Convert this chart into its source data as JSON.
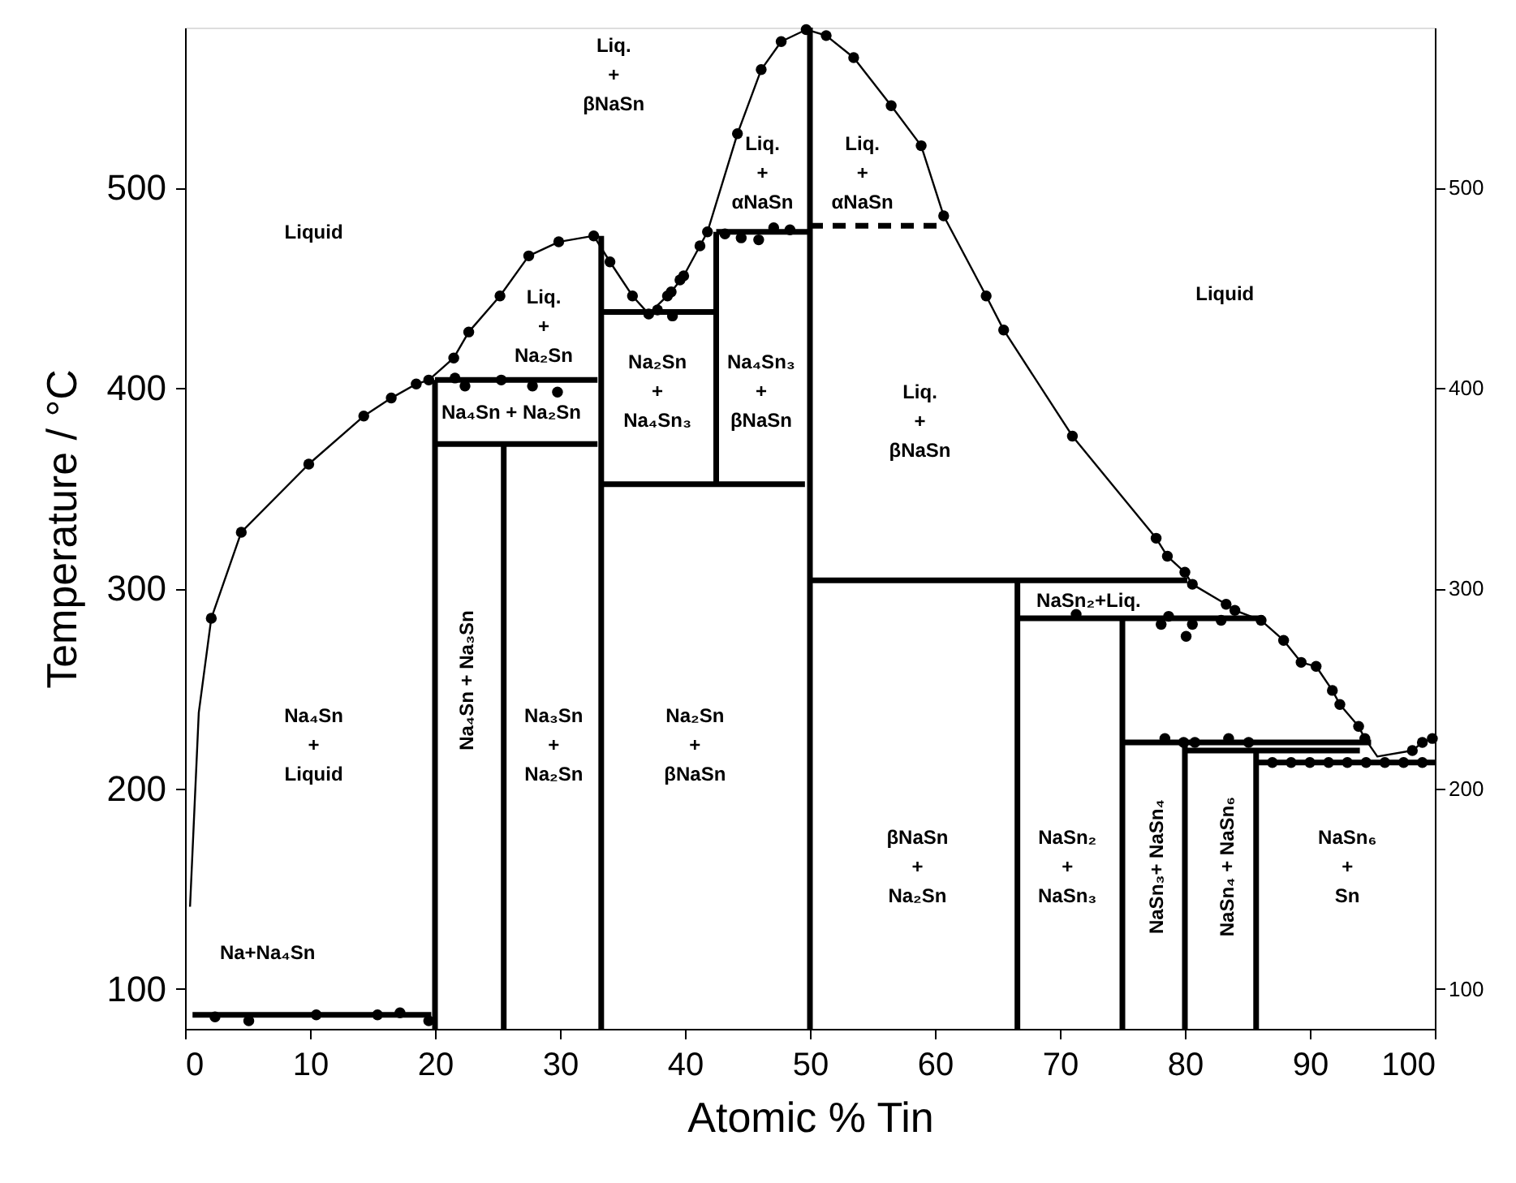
{
  "chart_data": {
    "type": "line",
    "xlabel": "Atomic % Tin",
    "ylabel": "Temperature / °C",
    "xlim": [
      0,
      100
    ],
    "xticks": [
      0,
      10,
      20,
      30,
      40,
      50,
      60,
      70,
      80,
      90,
      100
    ],
    "ylim": [
      80,
      580
    ],
    "yticks": [
      100,
      200,
      300,
      400,
      500
    ],
    "y2lim": [
      80,
      580
    ],
    "y2ticks": [
      100,
      200,
      300,
      400,
      500
    ],
    "grid": false,
    "line_style": "solid",
    "series": [
      {
        "color": "#000000",
        "x": [
          0.4,
          1.1,
          2.1,
          4.5,
          9.9,
          14.3,
          16.5,
          18.5,
          19.5,
          21.5,
          22.7,
          25.2,
          27.5,
          29.9,
          32.7,
          34.0,
          35.8,
          37.1,
          38.9,
          39.9,
          41.2,
          41.8,
          44.2,
          46.1,
          47.7,
          49.7,
          51.3,
          53.5,
          56.5,
          58.9,
          60.7,
          64.1,
          65.5,
          71.0,
          77.7,
          78.6,
          80.0,
          80.6,
          83.3,
          84.0,
          86.1,
          87.9,
          89.3,
          90.5,
          91.8,
          92.4,
          93.9,
          94.4,
          95.4,
          98.2,
          99.0,
          99.8
        ],
        "values": [
          141,
          238,
          285,
          328,
          362,
          386,
          395,
          402,
          404,
          415,
          428,
          446,
          466,
          473,
          476,
          463,
          446,
          437,
          448,
          456,
          471,
          478,
          527,
          559,
          573,
          579,
          576,
          565,
          541,
          521,
          486,
          446,
          429,
          376,
          325,
          316,
          308,
          302,
          292,
          289,
          284,
          274,
          263,
          261,
          249,
          242,
          231,
          225,
          216,
          219,
          223,
          225
        ]
      },
      {
        "type": "scatter",
        "color": "#000000",
        "x": [
          2.1,
          4.5,
          9.9,
          14.3,
          16.5,
          18.5,
          19.5,
          21.5,
          22.7,
          25.2,
          27.5,
          29.9,
          32.7,
          34.0,
          35.8,
          37.1,
          37.8,
          39.0,
          38.6,
          38.9,
          39.6,
          39.9,
          41.2,
          41.8,
          44.2,
          46.1,
          47.7,
          49.7,
          51.3,
          53.5,
          56.5,
          58.9,
          60.7,
          64.1,
          65.5,
          71.0,
          77.7,
          78.6,
          80.0,
          80.6,
          83.3,
          84.0,
          86.1,
          87.9,
          89.3,
          90.5,
          91.8,
          92.4,
          93.9,
          94.4,
          98.2,
          99.0,
          99.8,
          43.2,
          44.5,
          45.9,
          47.1,
          48.4,
          2.4,
          5.1,
          10.5,
          15.4,
          17.2,
          19.5,
          21.6,
          22.4,
          25.3,
          27.8,
          29.8,
          71.3,
          78.7,
          78.1,
          80.1,
          80.6,
          82.9,
          78.4,
          79.9,
          80.8,
          83.5,
          85.1,
          87,
          88.5,
          90,
          91.5,
          93,
          94.5,
          96,
          97.5,
          99
        ],
        "values": [
          285,
          328,
          362,
          386,
          395,
          402,
          404,
          415,
          428,
          446,
          466,
          473,
          476,
          463,
          446,
          437,
          439,
          436,
          446,
          448,
          454,
          456,
          471,
          478,
          527,
          559,
          573,
          579,
          576,
          565,
          541,
          521,
          486,
          446,
          429,
          376,
          325,
          316,
          308,
          302,
          292,
          289,
          284,
          274,
          263,
          261,
          249,
          242,
          231,
          225,
          219,
          223,
          225,
          477,
          475,
          474,
          480,
          479,
          86,
          84,
          87,
          87,
          88,
          84,
          405,
          401,
          404,
          401,
          398,
          287,
          286,
          282,
          276,
          282,
          284,
          225,
          223,
          223,
          225,
          223,
          213,
          213,
          213,
          213,
          213,
          213,
          213,
          213,
          213
        ]
      },
      {
        "color": "#000000",
        "x": [
          0.6,
          19.7
        ],
        "values": [
          87,
          87
        ]
      },
      {
        "color": "#000000",
        "x": [
          20,
          20
        ],
        "values": [
          80,
          404
        ]
      },
      {
        "color": "#000000",
        "x": [
          20,
          33
        ],
        "values": [
          404,
          404
        ]
      },
      {
        "color": "#000000",
        "x": [
          20,
          33
        ],
        "values": [
          372,
          372
        ]
      },
      {
        "color": "#000000",
        "x": [
          25.5,
          25.5
        ],
        "values": [
          80,
          372
        ]
      },
      {
        "color": "#000000",
        "x": [
          33.3,
          33.3
        ],
        "values": [
          80,
          476
        ]
      },
      {
        "color": "#000000",
        "x": [
          33.3,
          42.5
        ],
        "values": [
          438,
          438
        ]
      },
      {
        "color": "#000000",
        "x": [
          33.3,
          49.6
        ],
        "values": [
          352,
          352
        ]
      },
      {
        "color": "#000000",
        "x": [
          42.5,
          42.5
        ],
        "values": [
          352,
          478
        ]
      },
      {
        "color": "#000000",
        "x": [
          42.5,
          50
        ],
        "values": [
          478,
          478
        ]
      },
      {
        "color": "#000000",
        "x": [
          50,
          50
        ],
        "values": [
          80,
          580
        ]
      },
      {
        "color": "#000000",
        "line_style": "dashed",
        "x": [
          50,
          60.3
        ],
        "values": [
          481,
          481
        ]
      },
      {
        "color": "#000000",
        "x": [
          50,
          80.2
        ],
        "values": [
          304,
          304
        ]
      },
      {
        "color": "#000000",
        "x": [
          66.6,
          66.6
        ],
        "values": [
          80,
          304
        ]
      },
      {
        "color": "#000000",
        "x": [
          66.6,
          86.3
        ],
        "values": [
          285,
          285
        ]
      },
      {
        "color": "#000000",
        "x": [
          75,
          75
        ],
        "values": [
          80,
          285
        ]
      },
      {
        "color": "#000000",
        "x": [
          75,
          94.9
        ],
        "values": [
          223,
          223
        ]
      },
      {
        "color": "#000000",
        "x": [
          80,
          80
        ],
        "values": [
          80,
          223
        ]
      },
      {
        "color": "#000000",
        "x": [
          80,
          94
        ],
        "values": [
          219,
          219
        ]
      },
      {
        "color": "#000000",
        "x": [
          85.7,
          85.7
        ],
        "values": [
          80,
          219
        ]
      },
      {
        "color": "#000000",
        "x": [
          85.7,
          100
        ],
        "values": [
          213,
          213
        ]
      }
    ],
    "annotations": [
      "Liquid",
      "Liq.\n+\nβNaSn",
      "Liq.\n+\nαNaSn",
      "Liq.\n+\nαNaSn",
      "Liquid",
      "Liq.\n+\nNa₂Sn",
      "Na₄Sn + Na₂Sn",
      "Na₂Sn\n+\nNa₄Sn₃",
      "Na₄Sn₃\n+\nβNaSn",
      "Liq.\n+\nβNaSn",
      "NaSn₂+Liq.",
      "Na₄Sn\n+\nLiquid",
      "Na₄Sn + Na₃Sn",
      "Na₃Sn\n+\nNa₂Sn",
      "Na₂Sn\n+\nβNaSn",
      "βNaSn\n+\nNa₂Sn",
      "NaSn₂\n+\nNaSn₃",
      "NaSn₃+ NaSn₄",
      "NaSn₄ + NaSn₆",
      "NaSn₆\n+\nSn",
      "Na+Na₄Sn"
    ]
  }
}
